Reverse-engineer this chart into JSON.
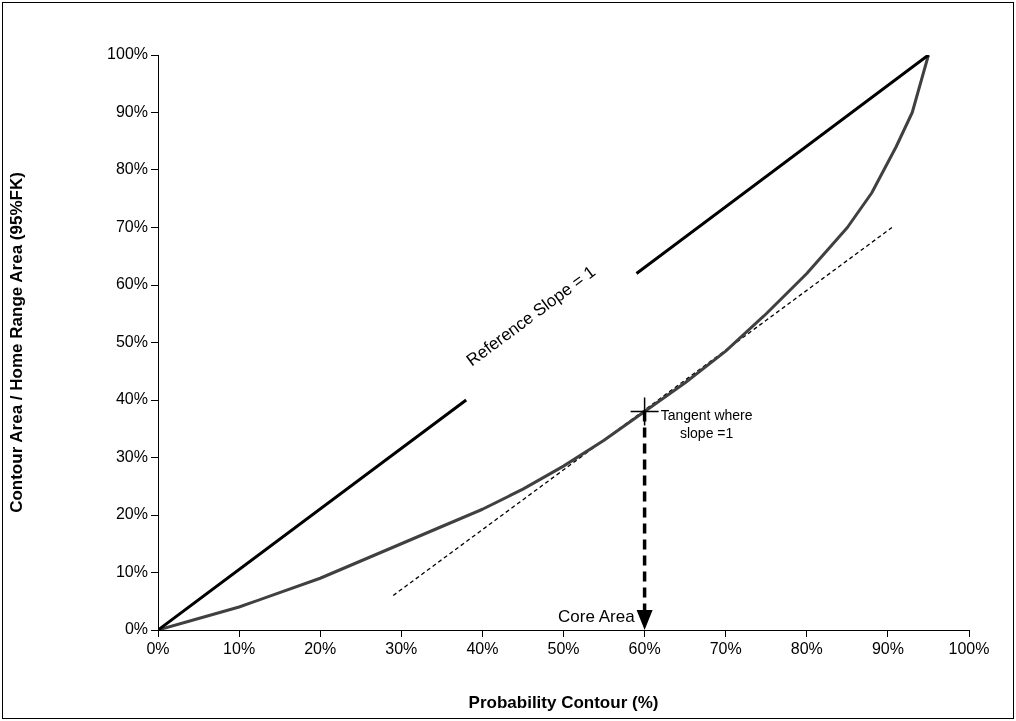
{
  "chart_data": {
    "type": "line",
    "xlabel": "Probability Contour (%)",
    "ylabel": "Contour Area / Home Range Area (95%FK)",
    "xlim": [
      0,
      100
    ],
    "ylim": [
      0,
      100
    ],
    "xticks": [
      {
        "value": 0,
        "label": "0%"
      },
      {
        "value": 10,
        "label": "10%"
      },
      {
        "value": 20,
        "label": "20%"
      },
      {
        "value": 30,
        "label": "30%"
      },
      {
        "value": 40,
        "label": "40%"
      },
      {
        "value": 50,
        "label": "50%"
      },
      {
        "value": 60,
        "label": "60%"
      },
      {
        "value": 70,
        "label": "70%"
      },
      {
        "value": 80,
        "label": "80%"
      },
      {
        "value": 90,
        "label": "90%"
      },
      {
        "value": 100,
        "label": "100%"
      }
    ],
    "yticks": [
      {
        "value": 0,
        "label": "0%"
      },
      {
        "value": 10,
        "label": "10%"
      },
      {
        "value": 20,
        "label": "20%"
      },
      {
        "value": 30,
        "label": "30%"
      },
      {
        "value": 40,
        "label": "40%"
      },
      {
        "value": 50,
        "label": "50%"
      },
      {
        "value": 60,
        "label": "60%"
      },
      {
        "value": 70,
        "label": "70%"
      },
      {
        "value": 80,
        "label": "80%"
      },
      {
        "value": 90,
        "label": "90%"
      },
      {
        "value": 100,
        "label": "100%"
      }
    ],
    "grid": false,
    "legend": false,
    "marker": "none",
    "line_style": "solid",
    "series": [
      {
        "color": "#000000",
        "x": [
          0,
          38,
          48,
          59,
          95
        ],
        "values": [
          0,
          40,
          null,
          62,
          100
        ]
      },
      {
        "color": "#404040",
        "x": [
          0,
          5,
          10,
          15,
          20,
          25,
          30,
          35,
          40,
          45,
          50,
          55,
          60,
          65,
          70,
          75,
          80,
          85,
          88,
          91,
          93,
          95
        ],
        "values": [
          0,
          2,
          4,
          6.5,
          9,
          12,
          15,
          18,
          21,
          24.5,
          28.5,
          33,
          38,
          43,
          48.5,
          55,
          62,
          70,
          76,
          84,
          90,
          100
        ]
      },
      {
        "color": "#000000",
        "line_style": "dotted",
        "x": [
          29,
          90.5
        ],
        "values": [
          6,
          70
        ]
      }
    ],
    "annotations": [
      "Reference Slope = 1",
      {
        "text": "Tangent where\nslope =1",
        "x": 60,
        "y": 38
      },
      {
        "text": "Core Area",
        "x": 60,
        "y": 38
      }
    ]
  }
}
